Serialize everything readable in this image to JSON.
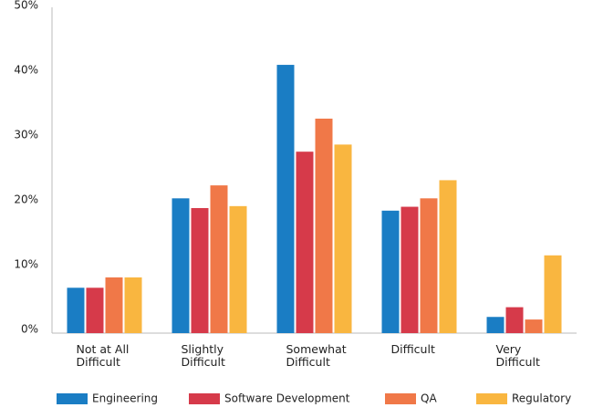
{
  "chart_data": {
    "type": "bar",
    "categories": [
      "Not at All Difficult",
      "Slightly Difficult",
      "Somewhat Difficult",
      "Difficult",
      "Very Difficult"
    ],
    "series": [
      {
        "name": "Engineering",
        "color": "#1a7dc4",
        "values": [
          7,
          20.8,
          41.4,
          18.9,
          2.5
        ]
      },
      {
        "name": "Software Development",
        "color": "#d63a4a",
        "values": [
          7,
          19.3,
          28,
          19.5,
          4
        ]
      },
      {
        "name": "QA",
        "color": "#f07848",
        "values": [
          8.6,
          22.8,
          33.1,
          20.8,
          2.1
        ]
      },
      {
        "name": "Regulatory",
        "color": "#f9b640",
        "values": [
          8.6,
          19.6,
          29.1,
          23.6,
          12
        ]
      }
    ],
    "ylim": [
      0,
      50
    ],
    "yticks": [
      {
        "value": 0,
        "label": "0%"
      },
      {
        "value": 10,
        "label": "10%"
      },
      {
        "value": 20,
        "label": "20%"
      },
      {
        "value": 30,
        "label": "30%"
      },
      {
        "value": 40,
        "label": "40%"
      },
      {
        "value": 50,
        "label": "50%"
      }
    ],
    "grid": false,
    "legend": "bottom"
  }
}
